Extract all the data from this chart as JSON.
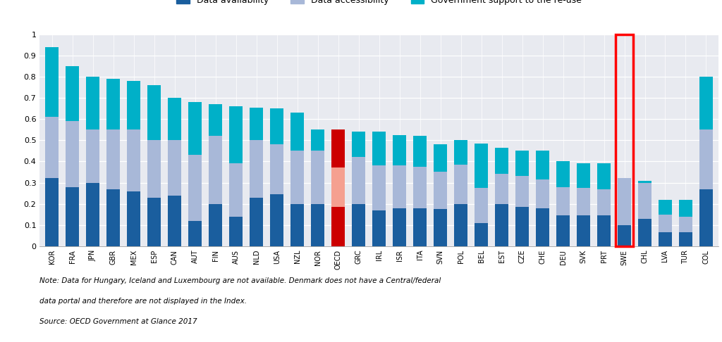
{
  "categories": [
    "KOR",
    "FRA",
    "JPN",
    "GBR",
    "MEX",
    "ESP",
    "CAN",
    "AUT",
    "FIN",
    "AUS",
    "NLD",
    "USA",
    "NZL",
    "NOR",
    "OECD",
    "GRC",
    "IRL",
    "ISR",
    "ITA",
    "SVN",
    "POL",
    "BEL",
    "EST",
    "CZE",
    "CHE",
    "DEU",
    "SVK",
    "PRT",
    "SWE",
    "CHL",
    "LVA",
    "TUR",
    "COL"
  ],
  "data_availability": [
    0.32,
    0.28,
    0.3,
    0.27,
    0.26,
    0.23,
    0.24,
    0.12,
    0.2,
    0.14,
    0.23,
    0.245,
    0.2,
    0.2,
    0.185,
    0.2,
    0.17,
    0.18,
    0.18,
    0.175,
    0.2,
    0.11,
    0.2,
    0.185,
    0.18,
    0.145,
    0.145,
    0.145,
    0.1,
    0.13,
    0.065,
    0.065,
    0.27
  ],
  "data_accessibility": [
    0.29,
    0.31,
    0.25,
    0.28,
    0.29,
    0.27,
    0.26,
    0.31,
    0.32,
    0.25,
    0.27,
    0.235,
    0.25,
    0.25,
    0.185,
    0.22,
    0.21,
    0.2,
    0.195,
    0.175,
    0.185,
    0.165,
    0.14,
    0.145,
    0.135,
    0.135,
    0.13,
    0.125,
    0.22,
    0.17,
    0.085,
    0.075,
    0.28
  ],
  "gov_support": [
    0.33,
    0.26,
    0.25,
    0.24,
    0.23,
    0.26,
    0.2,
    0.25,
    0.15,
    0.27,
    0.155,
    0.17,
    0.18,
    0.1,
    0.18,
    0.12,
    0.16,
    0.145,
    0.145,
    0.13,
    0.115,
    0.21,
    0.125,
    0.12,
    0.135,
    0.12,
    0.115,
    0.12,
    0.0,
    0.01,
    0.07,
    0.08,
    0.25
  ],
  "highlight_index": 28,
  "color_availability": "#1a5e9e",
  "color_accessibility": "#a8b8d8",
  "color_gov_support": "#00b0c8",
  "color_oecd_availability": "#cc0000",
  "color_oecd_accessibility": "#f5a090",
  "color_oecd_gov_support": "#cc0000",
  "background_color": "#e8eaf0",
  "note_line1": "Note: Data for Hungary, Iceland and Luxembourg are not available. Denmark does not have a Central/federal",
  "note_line2": "data portal and therefore are not displayed in the Index.",
  "note_line3": "Source: OECD Government at Glance 2017",
  "ylim": [
    0,
    1.0
  ],
  "yticks": [
    0,
    0.1,
    0.2,
    0.3,
    0.4,
    0.5,
    0.6,
    0.7,
    0.8,
    0.9,
    1
  ]
}
